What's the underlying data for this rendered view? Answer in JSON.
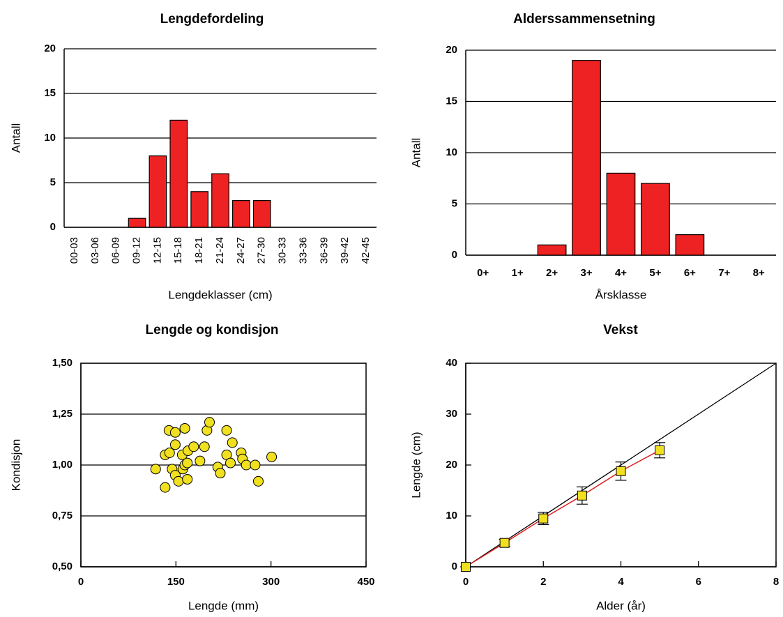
{
  "chart_data": [
    {
      "type": "bar",
      "title": "Lengdefordeling",
      "xlabel": "Lengdeklasser (cm)",
      "ylabel": "Antall",
      "categories": [
        "00-03",
        "03-06",
        "06-09",
        "09-12",
        "12-15",
        "15-18",
        "18-21",
        "21-24",
        "24-27",
        "27-30",
        "30-33",
        "33-36",
        "36-39",
        "39-42",
        "42-45"
      ],
      "values": [
        0,
        0,
        0,
        1,
        8,
        12,
        4,
        6,
        3,
        3,
        0,
        0,
        0,
        0,
        0
      ],
      "color": "#ee2222",
      "ylim": [
        0,
        20
      ],
      "yticks": [
        0,
        5,
        10,
        15,
        20
      ],
      "grid": true
    },
    {
      "type": "bar",
      "title": "Alderssammensetning",
      "xlabel": "Årsklasse",
      "ylabel": "Antall",
      "categories": [
        "0+",
        "1+",
        "2+",
        "3+",
        "4+",
        "5+",
        "6+",
        "7+",
        "8+"
      ],
      "values": [
        0,
        0,
        1,
        19,
        8,
        7,
        2,
        0,
        0
      ],
      "color": "#ee2222",
      "ylim": [
        0,
        20
      ],
      "yticks": [
        0,
        5,
        10,
        15,
        20
      ],
      "grid": true
    },
    {
      "type": "scatter",
      "title": "Lengde og kondisjon",
      "xlabel": "Lengde (mm)",
      "ylabel": "Kondisjon",
      "x": [
        118,
        133,
        140,
        139,
        149,
        133,
        144,
        149,
        149,
        154,
        164,
        160,
        161,
        164,
        168,
        168,
        169,
        178,
        188,
        195,
        199,
        203,
        216,
        220,
        230,
        230,
        236,
        239,
        253,
        255,
        261,
        275,
        280,
        301
      ],
      "values": [
        0.98,
        1.05,
        1.06,
        1.17,
        1.16,
        0.89,
        0.98,
        1.1,
        0.95,
        0.92,
        1.18,
        1.05,
        0.98,
        1.0,
        1.01,
        0.93,
        1.07,
        1.09,
        1.02,
        1.09,
        1.17,
        1.21,
        0.99,
        0.96,
        1.17,
        1.05,
        1.01,
        1.11,
        1.06,
        1.03,
        1.0,
        1.0,
        0.92,
        1.04
      ],
      "color": "#f0e020",
      "xlim": [
        0,
        450
      ],
      "xticks": [
        0,
        150,
        300,
        450
      ],
      "ylim": [
        0.5,
        1.5
      ],
      "yticks": [
        {
          "value": 0.5,
          "label": "0,50"
        },
        {
          "value": 0.75,
          "label": "0,75"
        },
        {
          "value": 1.0,
          "label": "1,00"
        },
        {
          "value": 1.25,
          "label": "1,25"
        },
        {
          "value": 1.5,
          "label": "1,50"
        }
      ],
      "grid": true,
      "frame": true
    },
    {
      "type": "line",
      "title": "Vekst",
      "xlabel": "Alder (år)",
      "ylabel": "Lengde (cm)",
      "x": [
        0,
        1,
        2,
        3,
        4,
        5
      ],
      "values": [
        0,
        4.7,
        9.5,
        14,
        18.8,
        22.9
      ],
      "errors": [
        0,
        0.7,
        1.2,
        1.7,
        1.8,
        1.5
      ],
      "color": "#e02020",
      "marker_color": "#f0e020",
      "reference_line": {
        "x": [
          0,
          8
        ],
        "values": [
          0,
          40
        ],
        "color": "#000000"
      },
      "xlim": [
        0,
        8
      ],
      "xticks": [
        0,
        2,
        4,
        6,
        8
      ],
      "ylim": [
        0,
        40
      ],
      "yticks": [
        0,
        10,
        20,
        30,
        40
      ],
      "grid": false,
      "frame": true
    }
  ]
}
